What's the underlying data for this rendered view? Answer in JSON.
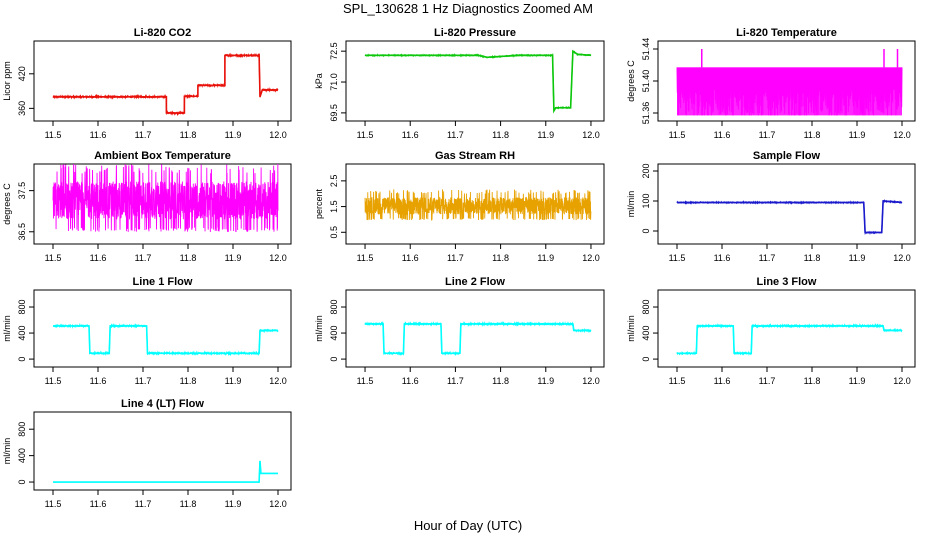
{
  "figure": {
    "title": "SPL_130628  1 Hz Diagnostics Zoomed AM",
    "xlabel": "Hour of Day (UTC)"
  },
  "chart_data": [
    {
      "type": "line",
      "title": "Li-820 CO2",
      "ylabel": "Licor ppm",
      "xlim": [
        11.48,
        12.02
      ],
      "ylim": [
        345,
        470
      ],
      "yticks": [
        "360",
        "420"
      ],
      "ytick_values": [
        360,
        420
      ],
      "xticks": [
        "11.5",
        "11.6",
        "11.7",
        "11.8",
        "11.9",
        "12.0"
      ],
      "xtick_values": [
        11.5,
        11.6,
        11.7,
        11.8,
        11.9,
        12.0
      ],
      "color": "#e8120b",
      "noise": 1.2,
      "series": [
        {
          "x": 11.5,
          "y": 380
        },
        {
          "x": 11.752,
          "y": 380
        },
        {
          "x": 11.752,
          "y": 352
        },
        {
          "x": 11.792,
          "y": 352
        },
        {
          "x": 11.792,
          "y": 381
        },
        {
          "x": 11.822,
          "y": 381
        },
        {
          "x": 11.822,
          "y": 400
        },
        {
          "x": 11.882,
          "y": 400
        },
        {
          "x": 11.882,
          "y": 452
        },
        {
          "x": 11.958,
          "y": 452
        },
        {
          "x": 11.958,
          "y": 455
        },
        {
          "x": 11.96,
          "y": 380
        },
        {
          "x": 11.965,
          "y": 392
        },
        {
          "x": 12.0,
          "y": 392
        }
      ]
    },
    {
      "type": "line",
      "title": "Li-820 Pressure",
      "ylabel": "kPa",
      "xlim": [
        11.48,
        12.02
      ],
      "ylim": [
        69.3,
        72.8
      ],
      "yticks": [
        "69.5",
        "71.0",
        "72.5"
      ],
      "ytick_values": [
        69.5,
        71.0,
        72.5
      ],
      "xticks": [
        "11.5",
        "11.6",
        "11.7",
        "11.8",
        "11.9",
        "12.0"
      ],
      "xtick_values": [
        11.5,
        11.6,
        11.7,
        11.8,
        11.9,
        12.0
      ],
      "color": "#0cc70c",
      "noise": 0.02,
      "series": [
        {
          "x": 11.5,
          "y": 72.3
        },
        {
          "x": 11.75,
          "y": 72.3
        },
        {
          "x": 11.77,
          "y": 72.2
        },
        {
          "x": 11.84,
          "y": 72.3
        },
        {
          "x": 11.915,
          "y": 72.3
        },
        {
          "x": 11.918,
          "y": 69.6
        },
        {
          "x": 11.922,
          "y": 69.75
        },
        {
          "x": 11.955,
          "y": 69.75
        },
        {
          "x": 11.96,
          "y": 72.5
        },
        {
          "x": 11.97,
          "y": 72.35
        },
        {
          "x": 12.0,
          "y": 72.3
        }
      ]
    },
    {
      "type": "line",
      "title": "Li-820 Temperature",
      "ylabel": "degrees C",
      "xlim": [
        11.48,
        12.02
      ],
      "ylim": [
        51.355,
        51.445
      ],
      "yticks": [
        "51.36",
        "51.40",
        "51.44"
      ],
      "ytick_values": [
        51.36,
        51.4,
        51.44
      ],
      "xticks": [
        "11.5",
        "11.6",
        "11.7",
        "11.8",
        "11.9",
        "12.0"
      ],
      "xtick_values": [
        11.5,
        11.6,
        11.7,
        11.8,
        11.9,
        12.0
      ],
      "color": "#ff00ff",
      "band": [
        51.357,
        51.417
      ],
      "spikes": [
        {
          "x": 11.555,
          "y": 51.44
        },
        {
          "x": 11.96,
          "y": 51.44
        },
        {
          "x": 11.99,
          "y": 51.44
        }
      ]
    },
    {
      "type": "line",
      "title": "Ambient Box Temperature",
      "ylabel": "degrees C",
      "xlim": [
        11.48,
        12.02
      ],
      "ylim": [
        36.3,
        38.05
      ],
      "yticks": [
        "36.5",
        "37.5"
      ],
      "ytick_values": [
        36.5,
        37.5
      ],
      "xticks": [
        "11.5",
        "11.6",
        "11.7",
        "11.8",
        "11.9",
        "12.0"
      ],
      "xtick_values": [
        11.5,
        11.6,
        11.7,
        11.8,
        11.9,
        12.0
      ],
      "color": "#ff00ff",
      "noise_band": [
        36.6,
        37.92
      ]
    },
    {
      "type": "line",
      "title": "Gas Stream RH",
      "ylabel": "percent",
      "xlim": [
        11.48,
        12.02
      ],
      "ylim": [
        0.2,
        3.0
      ],
      "yticks": [
        "0.5",
        "1.5",
        "2.5"
      ],
      "ytick_values": [
        0.5,
        1.5,
        2.5
      ],
      "xticks": [
        "11.5",
        "11.6",
        "11.7",
        "11.8",
        "11.9",
        "12.0"
      ],
      "xtick_values": [
        11.5,
        11.6,
        11.7,
        11.8,
        11.9,
        12.0
      ],
      "color": "#e8a200",
      "noise_band": [
        1.05,
        2.0
      ]
    },
    {
      "type": "line",
      "title": "Sample Flow",
      "ylabel": "ml/min",
      "xlim": [
        11.48,
        12.02
      ],
      "ylim": [
        -30,
        210
      ],
      "yticks": [
        "0",
        "100",
        "200"
      ],
      "ytick_values": [
        0,
        100,
        200
      ],
      "xticks": [
        "11.5",
        "11.6",
        "11.7",
        "11.8",
        "11.9",
        "12.0"
      ],
      "xtick_values": [
        11.5,
        11.6,
        11.7,
        11.8,
        11.9,
        12.0
      ],
      "color": "#1a1acc",
      "noise": 1.5,
      "series": [
        {
          "x": 11.5,
          "y": 95
        },
        {
          "x": 11.915,
          "y": 95
        },
        {
          "x": 11.918,
          "y": -5
        },
        {
          "x": 11.955,
          "y": -5
        },
        {
          "x": 11.958,
          "y": 100
        },
        {
          "x": 12.0,
          "y": 95
        }
      ]
    },
    {
      "type": "line",
      "title": "Line 1 Flow",
      "ylabel": "ml/min",
      "xlim": [
        11.48,
        12.02
      ],
      "ylim": [
        -60,
        1000
      ],
      "yticks": [
        "0",
        "400",
        "800"
      ],
      "ytick_values": [
        0,
        400,
        800
      ],
      "xticks": [
        "11.5",
        "11.6",
        "11.7",
        "11.8",
        "11.9",
        "12.0"
      ],
      "xtick_values": [
        11.5,
        11.6,
        11.7,
        11.8,
        11.9,
        12.0
      ],
      "color": "#00ffff",
      "noise": 10,
      "series": [
        {
          "x": 11.5,
          "y": 510
        },
        {
          "x": 11.58,
          "y": 510
        },
        {
          "x": 11.582,
          "y": 90
        },
        {
          "x": 11.625,
          "y": 90
        },
        {
          "x": 11.627,
          "y": 510
        },
        {
          "x": 11.708,
          "y": 510
        },
        {
          "x": 11.71,
          "y": 90
        },
        {
          "x": 11.958,
          "y": 90
        },
        {
          "x": 11.96,
          "y": 440
        },
        {
          "x": 12.0,
          "y": 440
        }
      ]
    },
    {
      "type": "line",
      "title": "Line 2 Flow",
      "ylabel": "ml/min",
      "xlim": [
        11.48,
        12.02
      ],
      "ylim": [
        -60,
        1000
      ],
      "yticks": [
        "0",
        "400",
        "800"
      ],
      "ytick_values": [
        0,
        400,
        800
      ],
      "xticks": [
        "11.5",
        "11.6",
        "11.7",
        "11.8",
        "11.9",
        "12.0"
      ],
      "xtick_values": [
        11.5,
        11.6,
        11.7,
        11.8,
        11.9,
        12.0
      ],
      "color": "#00ffff",
      "noise": 10,
      "series": [
        {
          "x": 11.5,
          "y": 540
        },
        {
          "x": 11.54,
          "y": 540
        },
        {
          "x": 11.542,
          "y": 90
        },
        {
          "x": 11.585,
          "y": 90
        },
        {
          "x": 11.587,
          "y": 540
        },
        {
          "x": 11.668,
          "y": 540
        },
        {
          "x": 11.67,
          "y": 90
        },
        {
          "x": 11.71,
          "y": 90
        },
        {
          "x": 11.712,
          "y": 540
        },
        {
          "x": 11.96,
          "y": 540
        },
        {
          "x": 11.962,
          "y": 440
        },
        {
          "x": 12.0,
          "y": 440
        }
      ]
    },
    {
      "type": "line",
      "title": "Line 3 Flow",
      "ylabel": "ml/min",
      "xlim": [
        11.48,
        12.02
      ],
      "ylim": [
        -60,
        1000
      ],
      "yticks": [
        "0",
        "400",
        "800"
      ],
      "ytick_values": [
        0,
        400,
        800
      ],
      "xticks": [
        "11.5",
        "11.6",
        "11.7",
        "11.8",
        "11.9",
        "12.0"
      ],
      "xtick_values": [
        11.5,
        11.6,
        11.7,
        11.8,
        11.9,
        12.0
      ],
      "color": "#00ffff",
      "noise": 10,
      "series": [
        {
          "x": 11.5,
          "y": 90
        },
        {
          "x": 11.543,
          "y": 90
        },
        {
          "x": 11.545,
          "y": 510
        },
        {
          "x": 11.625,
          "y": 510
        },
        {
          "x": 11.627,
          "y": 90
        },
        {
          "x": 11.665,
          "y": 90
        },
        {
          "x": 11.667,
          "y": 510
        },
        {
          "x": 11.958,
          "y": 510
        },
        {
          "x": 11.96,
          "y": 440
        },
        {
          "x": 12.0,
          "y": 440
        }
      ]
    },
    {
      "type": "line",
      "title": "Line 4 (LT) Flow",
      "ylabel": "ml/min",
      "xlim": [
        11.48,
        12.02
      ],
      "ylim": [
        -60,
        1000
      ],
      "yticks": [
        "0",
        "400",
        "800"
      ],
      "ytick_values": [
        0,
        400,
        800
      ],
      "xticks": [
        "11.5",
        "11.6",
        "11.7",
        "11.8",
        "11.9",
        "12.0"
      ],
      "xtick_values": [
        11.5,
        11.6,
        11.7,
        11.8,
        11.9,
        12.0
      ],
      "color": "#00ffff",
      "noise": 0,
      "series": [
        {
          "x": 11.5,
          "y": 0
        },
        {
          "x": 11.958,
          "y": 0
        },
        {
          "x": 11.96,
          "y": 320
        },
        {
          "x": 11.962,
          "y": 130
        },
        {
          "x": 12.0,
          "y": 130
        }
      ]
    }
  ]
}
